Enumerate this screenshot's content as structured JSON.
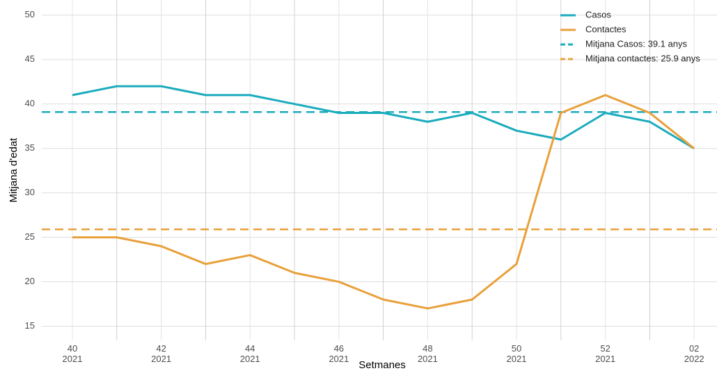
{
  "chart_data": {
    "type": "line",
    "x_label": "Setmanes",
    "y_label": "Mitjana d'edat",
    "categories": [
      "40\n2021",
      null,
      "42\n2021",
      null,
      "44\n2021",
      null,
      "46\n2021",
      null,
      "48\n2021",
      null,
      "50\n2021",
      null,
      "52\n2021",
      null,
      "02\n2022"
    ],
    "series": [
      {
        "name": "Casos",
        "color": "#1aabbd",
        "values": [
          41,
          42,
          42,
          41,
          41,
          40,
          39,
          39,
          38,
          39,
          37,
          36,
          39,
          38,
          35
        ]
      },
      {
        "name": "Contactes",
        "color": "#e8a03a",
        "values": [
          25,
          25,
          24,
          22,
          23,
          21,
          20,
          18,
          17,
          18,
          22,
          39,
          41,
          39,
          35
        ]
      }
    ],
    "hlines": [
      {
        "name": "Mitjana Casos: 39.1 anys",
        "value": 39.1,
        "color": "#1aabbd"
      },
      {
        "name": "Mitjana contactes: 25.9 anys",
        "value": 25.9,
        "color": "#e8a03a"
      }
    ],
    "ylim": [
      13.4,
      51.7
    ],
    "yticks": [
      15,
      20,
      25,
      30,
      35,
      40,
      45,
      50
    ],
    "grid": true,
    "legend": "top-right"
  }
}
